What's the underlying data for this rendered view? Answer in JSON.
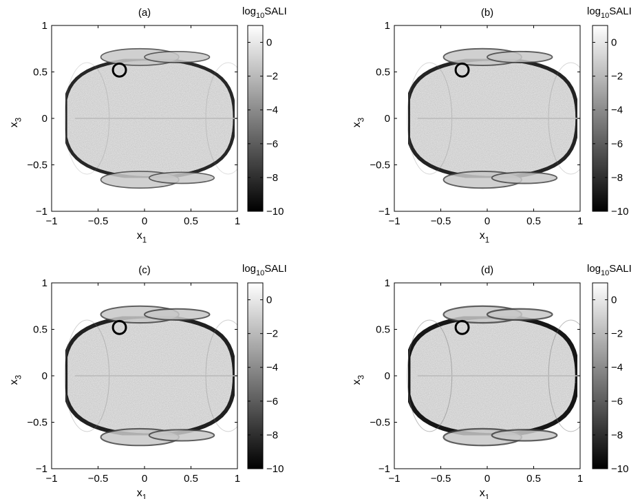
{
  "chart_data": [
    {
      "type": "heatmap",
      "title": "(a)",
      "xlabel": "x",
      "xlabel_sub": "1",
      "ylabel": "x",
      "ylabel_sub": "3",
      "xlim": [
        -1,
        1
      ],
      "ylim": [
        -1,
        1
      ],
      "x_ticks": [
        -1,
        -0.5,
        0,
        0.5,
        1
      ],
      "x_tick_labels": [
        "−1",
        "−0.5",
        "0",
        "0.5",
        "1"
      ],
      "y_ticks": [
        -1,
        -0.5,
        0,
        0.5,
        1
      ],
      "y_tick_labels": [
        "−1",
        "−0.5",
        "0",
        "0.5",
        "1"
      ],
      "colorbar": {
        "label_prefix": "log",
        "label_sub": "10",
        "label_suffix": "SALI",
        "range": [
          -10,
          1
        ],
        "ticks": [
          0,
          -2,
          -4,
          -6,
          -8,
          -10
        ],
        "tick_labels": [
          "0",
          "−2",
          "−4",
          "−6",
          "−8",
          "−10"
        ],
        "colormap": "gray"
      },
      "marker": {
        "shape": "circle",
        "x": -0.27,
        "y": 0.52,
        "radius": 0.07
      },
      "edge_darkness": 0.45,
      "side_lobes": 0.25
    },
    {
      "type": "heatmap",
      "title": "(b)",
      "xlabel": "x",
      "xlabel_sub": "1",
      "ylabel": "x",
      "ylabel_sub": "3",
      "xlim": [
        -1,
        1
      ],
      "ylim": [
        -1,
        1
      ],
      "x_ticks": [
        -1,
        -0.5,
        0,
        0.5,
        1
      ],
      "x_tick_labels": [
        "−1",
        "−0.5",
        "0",
        "0.5",
        "1"
      ],
      "y_ticks": [
        -1,
        -0.5,
        0,
        0.5,
        1
      ],
      "y_tick_labels": [
        "−1",
        "−0.5",
        "0",
        "0.5",
        "1"
      ],
      "colorbar": {
        "label_prefix": "log",
        "label_sub": "10",
        "label_suffix": "SALI",
        "range": [
          -10,
          1
        ],
        "ticks": [
          0,
          -2,
          -4,
          -6,
          -8,
          -10
        ],
        "tick_labels": [
          "0",
          "−2",
          "−4",
          "−6",
          "−8",
          "−10"
        ],
        "colormap": "gray"
      },
      "marker": {
        "shape": "circle",
        "x": -0.27,
        "y": 0.52,
        "radius": 0.07
      },
      "edge_darkness": 0.6,
      "side_lobes": 0.3
    },
    {
      "type": "heatmap",
      "title": "(c)",
      "xlabel": "x",
      "xlabel_sub": "1",
      "ylabel": "x",
      "ylabel_sub": "3",
      "xlim": [
        -1,
        1
      ],
      "ylim": [
        -1,
        1
      ],
      "x_ticks": [
        -1,
        -0.5,
        0,
        0.5,
        1
      ],
      "x_tick_labels": [
        "−1",
        "−0.5",
        "0",
        "0.5",
        "1"
      ],
      "y_ticks": [
        -1,
        -0.5,
        0,
        0.5,
        1
      ],
      "y_tick_labels": [
        "−1",
        "−0.5",
        "0",
        "0.5",
        "1"
      ],
      "colorbar": {
        "label_prefix": "log",
        "label_sub": "10",
        "label_suffix": "SALI",
        "range": [
          -10,
          1
        ],
        "ticks": [
          0,
          -2,
          -4,
          -6,
          -8,
          -10
        ],
        "tick_labels": [
          "0",
          "−2",
          "−4",
          "−6",
          "−8",
          "−10"
        ],
        "colormap": "gray"
      },
      "marker": {
        "shape": "circle",
        "x": -0.27,
        "y": 0.52,
        "radius": 0.07
      },
      "edge_darkness": 0.7,
      "side_lobes": 0.35
    },
    {
      "type": "heatmap",
      "title": "(d)",
      "xlabel": "x",
      "xlabel_sub": "1",
      "ylabel": "x",
      "ylabel_sub": "3",
      "xlim": [
        -1,
        1
      ],
      "ylim": [
        -1,
        1
      ],
      "x_ticks": [
        -1,
        -0.5,
        0,
        0.5,
        1
      ],
      "x_tick_labels": [
        "−1",
        "−0.5",
        "0",
        "0.5",
        "1"
      ],
      "y_ticks": [
        -1,
        -0.5,
        0,
        0.5,
        1
      ],
      "y_tick_labels": [
        "−1",
        "−0.5",
        "0",
        "0.5",
        "1"
      ],
      "colorbar": {
        "label_prefix": "log",
        "label_sub": "10",
        "label_suffix": "SALI",
        "range": [
          -10,
          1
        ],
        "ticks": [
          0,
          -2,
          -4,
          -6,
          -8,
          -10
        ],
        "tick_labels": [
          "0",
          "−2",
          "−4",
          "−6",
          "−8",
          "−10"
        ],
        "colormap": "gray"
      },
      "marker": {
        "shape": "circle",
        "x": -0.27,
        "y": 0.52,
        "radius": 0.07
      },
      "edge_darkness": 0.85,
      "side_lobes": 0.5
    }
  ]
}
